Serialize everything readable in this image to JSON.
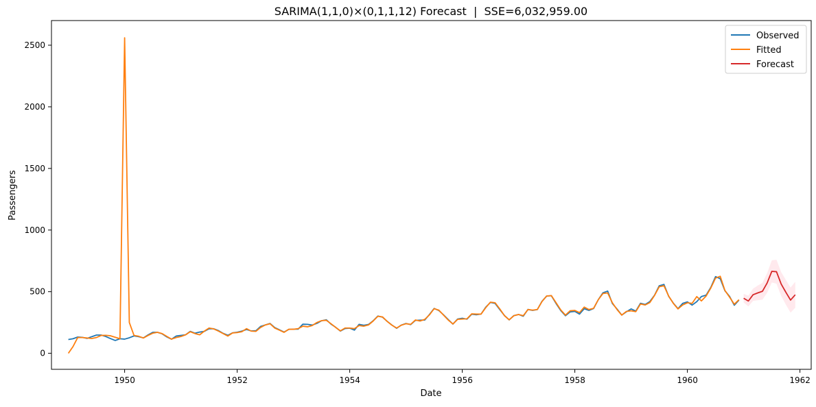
{
  "chart_data": {
    "type": "line",
    "title": "SARIMA(1,1,0)×(0,1,1,12) Forecast  |  SSE=6,032,959.00",
    "xlabel": "Date",
    "ylabel": "Passengers",
    "xlim": [
      1948.7,
      1962.2
    ],
    "ylim": [
      -130,
      2700
    ],
    "xticks": [
      1950,
      1952,
      1954,
      1956,
      1958,
      1960,
      1962
    ],
    "xtick_labels": [
      "1950",
      "1952",
      "1954",
      "1956",
      "1958",
      "1960",
      "1962"
    ],
    "yticks": [
      0,
      500,
      1000,
      1500,
      2000,
      2500
    ],
    "ytick_labels": [
      "0",
      "500",
      "1000",
      "1500",
      "2000",
      "2500"
    ],
    "grid": false,
    "legend_position": "top-right",
    "x_start": 1949.0,
    "x_step_months": 1,
    "series": [
      {
        "name": "Observed",
        "color": "#1f77b4",
        "start": 1949.0,
        "values": [
          112,
          118,
          132,
          129,
          121,
          135,
          148,
          148,
          136,
          119,
          104,
          118,
          115,
          126,
          141,
          135,
          125,
          149,
          170,
          170,
          158,
          133,
          114,
          140,
          145,
          150,
          178,
          163,
          172,
          178,
          199,
          199,
          184,
          162,
          146,
          166,
          171,
          180,
          193,
          181,
          183,
          218,
          230,
          242,
          209,
          191,
          172,
          194,
          196,
          196,
          236,
          235,
          229,
          243,
          264,
          272,
          237,
          211,
          180,
          201,
          204,
          188,
          235,
          227,
          234,
          264,
          302,
          293,
          259,
          229,
          203,
          229,
          242,
          233,
          267,
          269,
          270,
          315,
          364,
          347,
          312,
          274,
          237,
          278,
          284,
          277,
          317,
          313,
          318,
          374,
          413,
          405,
          355,
          306,
          271,
          306,
          315,
          301,
          356,
          348,
          355,
          422,
          465,
          467,
          404,
          347,
          305,
          336,
          340,
          318,
          362,
          348,
          363,
          435,
          491,
          505,
          404,
          359,
          310,
          337,
          360,
          342,
          406,
          396,
          420,
          472,
          548,
          559,
          463,
          407,
          362,
          405,
          417,
          391,
          419,
          461,
          472,
          535,
          622,
          606,
          508,
          461,
          390,
          432
        ]
      },
      {
        "name": "Fitted",
        "color": "#ff7f0e",
        "start": 1949.0,
        "values": [
          0,
          55,
          128,
          128,
          124,
          120,
          128,
          145,
          146,
          142,
          130,
          118,
          2560,
          250,
          145,
          138,
          124,
          145,
          163,
          170,
          160,
          137,
          115,
          128,
          136,
          150,
          175,
          160,
          150,
          180,
          205,
          198,
          180,
          160,
          140,
          165,
          168,
          175,
          200,
          180,
          178,
          210,
          230,
          240,
          205,
          188,
          170,
          195,
          195,
          200,
          220,
          215,
          225,
          250,
          265,
          268,
          240,
          210,
          182,
          205,
          205,
          200,
          225,
          220,
          230,
          262,
          300,
          295,
          258,
          228,
          205,
          228,
          240,
          235,
          270,
          262,
          275,
          312,
          362,
          350,
          310,
          270,
          238,
          275,
          278,
          280,
          320,
          318,
          318,
          370,
          415,
          410,
          360,
          305,
          272,
          305,
          315,
          305,
          355,
          350,
          355,
          420,
          465,
          468,
          410,
          352,
          310,
          345,
          348,
          330,
          375,
          355,
          365,
          435,
          485,
          490,
          410,
          355,
          310,
          340,
          345,
          338,
          400,
          392,
          412,
          470,
          540,
          548,
          465,
          405,
          360,
          392,
          410,
          405,
          460,
          425,
          465,
          530,
          610,
          625,
          510,
          455,
          398,
          435
        ]
      },
      {
        "name": "Forecast",
        "color": "#d62728",
        "start": 1961.0,
        "values": [
          447,
          424,
          475,
          490,
          503,
          570,
          665,
          662,
          562,
          495,
          432,
          475
        ],
        "lower": [
          412,
          380,
          425,
          430,
          435,
          490,
          575,
          565,
          465,
          395,
          330,
          370
        ],
        "upper": [
          482,
          468,
          525,
          550,
          571,
          650,
          755,
          759,
          659,
          595,
          534,
          580
        ],
        "band_color": "#ffc0cb"
      }
    ]
  }
}
